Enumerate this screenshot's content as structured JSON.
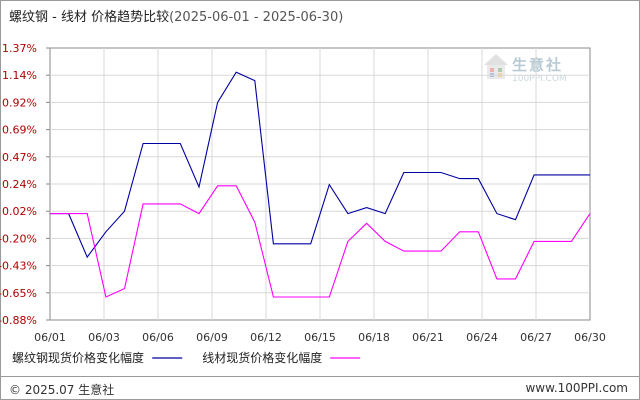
{
  "title": {
    "main": "螺纹钢 - 线材 价格趋势比较",
    "range": "(2025-06-01 - 2025-06-30)"
  },
  "watermark": {
    "name": "生意社",
    "site": "100PPI.COM"
  },
  "footer": {
    "copyright": "© 2025.07 生意社",
    "site": "www.100PPI.com"
  },
  "chart_data": {
    "type": "line",
    "title": "螺纹钢 - 线材 价格趋势比较",
    "xlabel": "",
    "ylabel": "",
    "y_ticks": [
      "1.37%",
      "1.14%",
      "0.92%",
      "0.69%",
      "0.47%",
      "0.24%",
      "0.02%",
      "-0.20%",
      "-0.43%",
      "-0.65%",
      "-0.88%"
    ],
    "ylim": [
      -0.88,
      1.37
    ],
    "x_ticks": [
      "06/01",
      "06/03",
      "06/06",
      "06/09",
      "06/12",
      "06/15",
      "06/18",
      "06/21",
      "06/24",
      "06/27",
      "06/30"
    ],
    "x": [
      "06/01",
      "06/02",
      "06/03",
      "06/04",
      "06/05",
      "06/06",
      "06/07",
      "06/08",
      "06/09",
      "06/10",
      "06/11",
      "06/12",
      "06/13",
      "06/14",
      "06/15",
      "06/16",
      "06/17",
      "06/18",
      "06/19",
      "06/20",
      "06/21",
      "06/22",
      "06/23",
      "06/24",
      "06/25",
      "06/26",
      "06/27",
      "06/28",
      "06/29",
      "06/30"
    ],
    "grid": true,
    "legend_position": "bottom",
    "series": [
      {
        "name": "螺纹钢现货价格变化幅度",
        "color": "#0000a0",
        "values": [
          0.0,
          0.0,
          -0.36,
          -0.15,
          0.02,
          0.58,
          0.58,
          0.58,
          0.22,
          0.92,
          1.17,
          1.1,
          -0.25,
          -0.25,
          -0.25,
          0.24,
          0.0,
          0.05,
          0.0,
          0.34,
          0.34,
          0.34,
          0.29,
          0.29,
          0.0,
          -0.05,
          0.32,
          0.32,
          0.32,
          0.32
        ]
      },
      {
        "name": "线材现货价格变化幅度",
        "color": "#ff00ff",
        "values": [
          0.0,
          0.0,
          0.0,
          -0.69,
          -0.62,
          0.08,
          0.08,
          0.08,
          0.0,
          0.23,
          0.23,
          -0.07,
          -0.69,
          -0.69,
          -0.69,
          -0.69,
          -0.23,
          -0.08,
          -0.23,
          -0.31,
          -0.31,
          -0.31,
          -0.15,
          -0.15,
          -0.54,
          -0.54,
          -0.23,
          -0.23,
          -0.23,
          0.0
        ]
      }
    ]
  }
}
